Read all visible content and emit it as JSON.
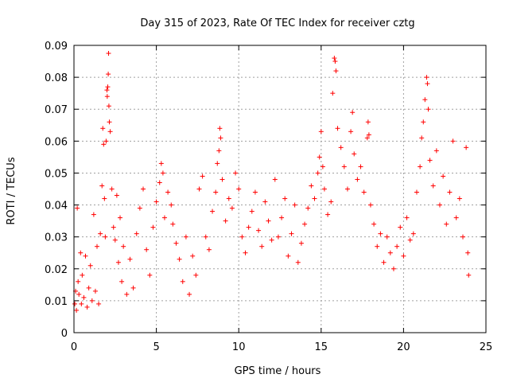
{
  "chart_data": {
    "type": "scatter",
    "title": "Day 315 of 2023, Rate Of TEC Index for receiver cztg",
    "xlabel": "GPS time / hours",
    "ylabel": "ROTI / TECUs",
    "xlim": [
      0,
      25
    ],
    "ylim": [
      0,
      0.09
    ],
    "x_ticks": [
      "0",
      "5",
      "10",
      "15",
      "20",
      "25"
    ],
    "x_tick_values": [
      0,
      5,
      10,
      15,
      20,
      25
    ],
    "y_ticks": [
      "0",
      "0.01",
      "0.02",
      "0.03",
      "0.04",
      "0.05",
      "0.06",
      "0.07",
      "0.08",
      "0.09"
    ],
    "y_tick_values": [
      0,
      0.01,
      0.02,
      0.03,
      0.04,
      0.05,
      0.06,
      0.07,
      0.08,
      0.09
    ],
    "grid": true,
    "marker": "+",
    "color": "#ff0000",
    "series": [
      {
        "points": [
          [
            0.05,
            0.009
          ],
          [
            0.1,
            0.013
          ],
          [
            0.15,
            0.007
          ],
          [
            0.2,
            0.039
          ],
          [
            0.25,
            0.016
          ],
          [
            0.3,
            0.012
          ],
          [
            0.4,
            0.025
          ],
          [
            0.45,
            0.009
          ],
          [
            0.5,
            0.018
          ],
          [
            0.6,
            0.011
          ],
          [
            0.7,
            0.024
          ],
          [
            0.8,
            0.008
          ],
          [
            0.9,
            0.014
          ],
          [
            1.0,
            0.021
          ],
          [
            1.1,
            0.01
          ],
          [
            1.2,
            0.037
          ],
          [
            1.3,
            0.013
          ],
          [
            1.4,
            0.027
          ],
          [
            1.5,
            0.009
          ],
          [
            1.6,
            0.031
          ],
          [
            1.7,
            0.046
          ],
          [
            1.75,
            0.064
          ],
          [
            1.8,
            0.059
          ],
          [
            1.85,
            0.042
          ],
          [
            1.9,
            0.03
          ],
          [
            1.95,
            0.06
          ],
          [
            2.0,
            0.076
          ],
          [
            2.02,
            0.074
          ],
          [
            2.05,
            0.077
          ],
          [
            2.08,
            0.081
          ],
          [
            2.1,
            0.0875
          ],
          [
            2.12,
            0.071
          ],
          [
            2.15,
            0.066
          ],
          [
            2.2,
            0.063
          ],
          [
            2.3,
            0.045
          ],
          [
            2.4,
            0.033
          ],
          [
            2.5,
            0.029
          ],
          [
            2.6,
            0.043
          ],
          [
            2.7,
            0.022
          ],
          [
            2.8,
            0.036
          ],
          [
            2.9,
            0.016
          ],
          [
            3.0,
            0.027
          ],
          [
            3.2,
            0.012
          ],
          [
            3.4,
            0.023
          ],
          [
            3.6,
            0.014
          ],
          [
            3.8,
            0.031
          ],
          [
            4.0,
            0.039
          ],
          [
            4.2,
            0.045
          ],
          [
            4.4,
            0.026
          ],
          [
            4.6,
            0.018
          ],
          [
            4.8,
            0.033
          ],
          [
            5.0,
            0.041
          ],
          [
            5.2,
            0.047
          ],
          [
            5.3,
            0.053
          ],
          [
            5.4,
            0.05
          ],
          [
            5.5,
            0.036
          ],
          [
            5.7,
            0.044
          ],
          [
            5.9,
            0.04
          ],
          [
            6.0,
            0.034
          ],
          [
            6.2,
            0.028
          ],
          [
            6.4,
            0.023
          ],
          [
            6.6,
            0.016
          ],
          [
            6.8,
            0.03
          ],
          [
            7.0,
            0.012
          ],
          [
            7.2,
            0.024
          ],
          [
            7.4,
            0.018
          ],
          [
            7.6,
            0.045
          ],
          [
            7.8,
            0.049
          ],
          [
            8.0,
            0.03
          ],
          [
            8.2,
            0.026
          ],
          [
            8.4,
            0.038
          ],
          [
            8.6,
            0.044
          ],
          [
            8.7,
            0.053
          ],
          [
            8.8,
            0.057
          ],
          [
            8.85,
            0.064
          ],
          [
            8.9,
            0.061
          ],
          [
            9.0,
            0.048
          ],
          [
            9.2,
            0.035
          ],
          [
            9.4,
            0.042
          ],
          [
            9.6,
            0.039
          ],
          [
            9.8,
            0.05
          ],
          [
            10.0,
            0.045
          ],
          [
            10.2,
            0.03
          ],
          [
            10.4,
            0.025
          ],
          [
            10.6,
            0.033
          ],
          [
            10.8,
            0.038
          ],
          [
            11.0,
            0.044
          ],
          [
            11.2,
            0.032
          ],
          [
            11.4,
            0.027
          ],
          [
            11.6,
            0.041
          ],
          [
            11.8,
            0.035
          ],
          [
            12.0,
            0.029
          ],
          [
            12.2,
            0.048
          ],
          [
            12.4,
            0.03
          ],
          [
            12.6,
            0.036
          ],
          [
            12.8,
            0.042
          ],
          [
            13.0,
            0.024
          ],
          [
            13.2,
            0.031
          ],
          [
            13.4,
            0.04
          ],
          [
            13.6,
            0.022
          ],
          [
            13.8,
            0.028
          ],
          [
            14.0,
            0.034
          ],
          [
            14.2,
            0.039
          ],
          [
            14.4,
            0.046
          ],
          [
            14.6,
            0.042
          ],
          [
            14.8,
            0.05
          ],
          [
            14.9,
            0.055
          ],
          [
            15.0,
            0.063
          ],
          [
            15.1,
            0.052
          ],
          [
            15.2,
            0.045
          ],
          [
            15.4,
            0.037
          ],
          [
            15.6,
            0.041
          ],
          [
            15.7,
            0.075
          ],
          [
            15.8,
            0.086
          ],
          [
            15.85,
            0.085
          ],
          [
            15.9,
            0.082
          ],
          [
            16.0,
            0.064
          ],
          [
            16.2,
            0.058
          ],
          [
            16.4,
            0.052
          ],
          [
            16.6,
            0.045
          ],
          [
            16.8,
            0.063
          ],
          [
            16.9,
            0.069
          ],
          [
            17.0,
            0.056
          ],
          [
            17.2,
            0.048
          ],
          [
            17.4,
            0.052
          ],
          [
            17.6,
            0.044
          ],
          [
            17.8,
            0.061
          ],
          [
            17.85,
            0.066
          ],
          [
            17.9,
            0.062
          ],
          [
            18.0,
            0.04
          ],
          [
            18.2,
            0.034
          ],
          [
            18.4,
            0.027
          ],
          [
            18.6,
            0.031
          ],
          [
            18.8,
            0.022
          ],
          [
            19.0,
            0.03
          ],
          [
            19.2,
            0.025
          ],
          [
            19.4,
            0.02
          ],
          [
            19.6,
            0.027
          ],
          [
            19.8,
            0.033
          ],
          [
            20.0,
            0.024
          ],
          [
            20.2,
            0.036
          ],
          [
            20.4,
            0.029
          ],
          [
            20.6,
            0.031
          ],
          [
            20.8,
            0.044
          ],
          [
            21.0,
            0.052
          ],
          [
            21.1,
            0.061
          ],
          [
            21.2,
            0.066
          ],
          [
            21.3,
            0.073
          ],
          [
            21.4,
            0.08
          ],
          [
            21.45,
            0.078
          ],
          [
            21.5,
            0.07
          ],
          [
            21.6,
            0.054
          ],
          [
            21.8,
            0.046
          ],
          [
            22.0,
            0.057
          ],
          [
            22.2,
            0.04
          ],
          [
            22.4,
            0.049
          ],
          [
            22.6,
            0.034
          ],
          [
            22.8,
            0.044
          ],
          [
            23.0,
            0.06
          ],
          [
            23.2,
            0.036
          ],
          [
            23.4,
            0.042
          ],
          [
            23.6,
            0.03
          ],
          [
            23.8,
            0.058
          ],
          [
            23.9,
            0.025
          ],
          [
            23.95,
            0.018
          ]
        ]
      }
    ]
  }
}
